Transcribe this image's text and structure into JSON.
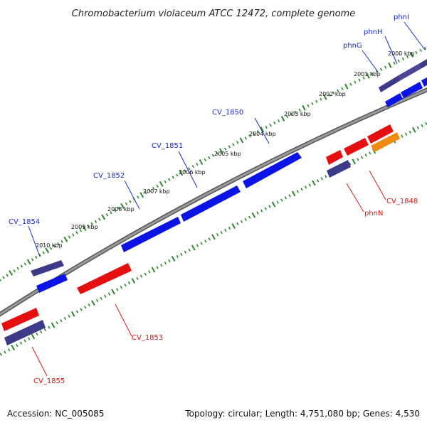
{
  "figure": {
    "title": "Chromobacterium violaceum ATCC 12472, complete genome",
    "accession": "Accession: NC_005085",
    "summary": "Topology: circular; Length: 4,751,080 bp; Genes: 4,530"
  },
  "colors": {
    "backbone": "#808080",
    "tick": "#2a8a2a",
    "forward": "#0a14e6",
    "forward_dark": "#3e3a8a",
    "reverse": "#e60f0f",
    "reverse_dark": "#3e3a8a",
    "orange": "#f08a10",
    "label_forward": "#1a2ad0",
    "label_reverse": "#d81818"
  },
  "scale_labels": [
    "2000 kbp",
    "2001 kbp",
    "2002 kbp",
    "2003 kbp",
    "2004 kbp",
    "2005 kbp",
    "2006 kbp",
    "2007 kbp",
    "2008 kbp",
    "2009 kbp",
    "2010 kbp"
  ],
  "genes_forward": [
    "phnI",
    "phnH",
    "phnG",
    "CV_1850",
    "CV_1851",
    "CV_1852",
    "CV_1854"
  ],
  "genes_reverse": [
    "CV_1848",
    "phnN",
    "CV_1853",
    "CV_1855"
  ]
}
